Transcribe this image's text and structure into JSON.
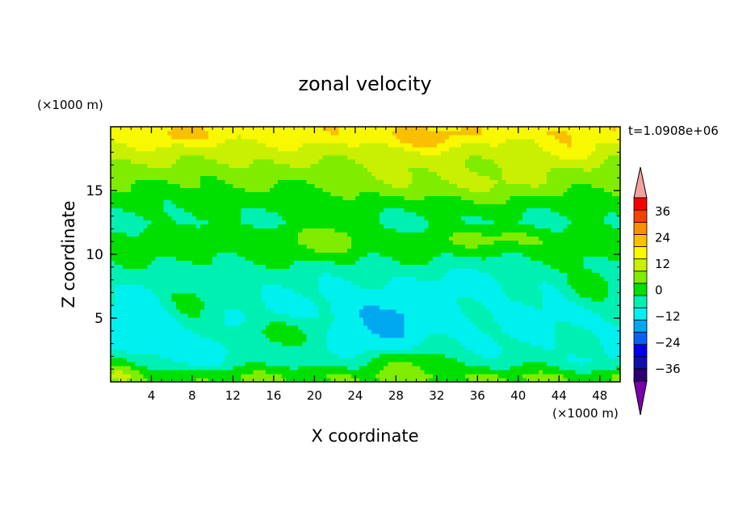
{
  "chart_data": {
    "type": "heatmap",
    "title": "zonal velocity",
    "xlabel": "X coordinate",
    "ylabel": "Z coordinate",
    "x_unit": "(×1000 m)",
    "y_unit": "(×1000 m)",
    "timestamp": "t=1.0908e+06",
    "xlim": [
      0,
      50
    ],
    "ylim": [
      0,
      20
    ],
    "x_ticks": [
      4,
      8,
      12,
      16,
      20,
      24,
      28,
      32,
      36,
      40,
      44,
      48
    ],
    "y_ticks": [
      5,
      10,
      15
    ],
    "grid": false,
    "colorbar": {
      "placement": "right",
      "levels": [
        -42,
        -36,
        -30,
        -24,
        -18,
        -12,
        -6,
        0,
        6,
        12,
        18,
        24,
        30,
        36,
        42
      ],
      "colors": [
        "#7a00a8",
        "#2a006e",
        "#1010a8",
        "#0000e8",
        "#0a60f0",
        "#00a8f0",
        "#00f0f0",
        "#00f0b4",
        "#00e000",
        "#80ec00",
        "#c8f000",
        "#f8f800",
        "#f8c000",
        "#f89000",
        "#f84000",
        "#f80000",
        "#f4a0a0"
      ],
      "tick_labels": [
        "36",
        "24",
        "12",
        "0",
        "−12",
        "−24",
        "−36"
      ],
      "tick_values": [
        36,
        24,
        12,
        0,
        -12,
        -24,
        -36
      ]
    },
    "z_bands": [
      {
        "z": 19.5,
        "u": 22
      },
      {
        "z": 18.5,
        "u": 17
      },
      {
        "z": 17.5,
        "u": 13
      },
      {
        "z": 16.5,
        "u": 9
      },
      {
        "z": 15.5,
        "u": 6
      },
      {
        "z": 14.5,
        "u": 3
      },
      {
        "z": 13.5,
        "u": 1
      },
      {
        "z": 12.5,
        "u": -1
      },
      {
        "z": 11.5,
        "u": 2
      },
      {
        "z": 10.5,
        "u": 3
      },
      {
        "z": 9.5,
        "u": 0
      },
      {
        "z": 8.5,
        "u": -3
      },
      {
        "z": 7.5,
        "u": -5
      },
      {
        "z": 6.5,
        "u": -6
      },
      {
        "z": 5.5,
        "u": -7
      },
      {
        "z": 4.5,
        "u": -7
      },
      {
        "z": 3.5,
        "u": -6
      },
      {
        "z": 2.5,
        "u": -5
      },
      {
        "z": 1.5,
        "u": -2
      },
      {
        "z": 0.5,
        "u": 6
      }
    ],
    "features": [
      {
        "x": 30.5,
        "z": 19.0,
        "rx": 3.5,
        "rz": 0.8,
        "u": 8
      },
      {
        "x": 7,
        "z": 19.2,
        "rx": 3,
        "rz": 0.6,
        "u": 4
      },
      {
        "x": 45,
        "z": 18.0,
        "rx": 3,
        "rz": 1.2,
        "u": 5
      },
      {
        "x": 35,
        "z": 15.5,
        "rx": 10,
        "rz": 1.4,
        "u": 7
      },
      {
        "x": 22,
        "z": 11.2,
        "rx": 3,
        "rz": 1.3,
        "u": 7
      },
      {
        "x": 38,
        "z": 11.3,
        "rx": 4,
        "rz": 0.8,
        "u": 7
      },
      {
        "x": 47,
        "z": 7.5,
        "rx": 2.5,
        "rz": 1.3,
        "u": 10
      },
      {
        "x": 7.5,
        "z": 6.3,
        "rx": 3,
        "rz": 1.8,
        "u": 9
      },
      {
        "x": 16.5,
        "z": 4.0,
        "rx": 4,
        "rz": 1.2,
        "u": 9
      },
      {
        "x": 29,
        "z": 1.6,
        "rx": 4,
        "rz": 1.0,
        "u": 8
      },
      {
        "x": 27,
        "z": 5.0,
        "rx": 5,
        "rz": 2.8,
        "u": -6
      },
      {
        "x": 4,
        "z": 4.5,
        "rx": 4,
        "rz": 3.2,
        "u": -4
      },
      {
        "x": 8,
        "z": 2.0,
        "rx": 3.5,
        "rz": 1.2,
        "u": -5
      },
      {
        "x": 36,
        "z": 8.2,
        "rx": 6,
        "rz": 1.5,
        "u": -3
      },
      {
        "x": 47,
        "z": 1.6,
        "rx": 3,
        "rz": 1.0,
        "u": -4
      },
      {
        "x": 14,
        "z": 11.5,
        "rx": 6,
        "rz": 1.0,
        "u": 3
      },
      {
        "x": 1,
        "z": 1.0,
        "rx": 2,
        "rz": 1.2,
        "u": 7
      }
    ]
  }
}
